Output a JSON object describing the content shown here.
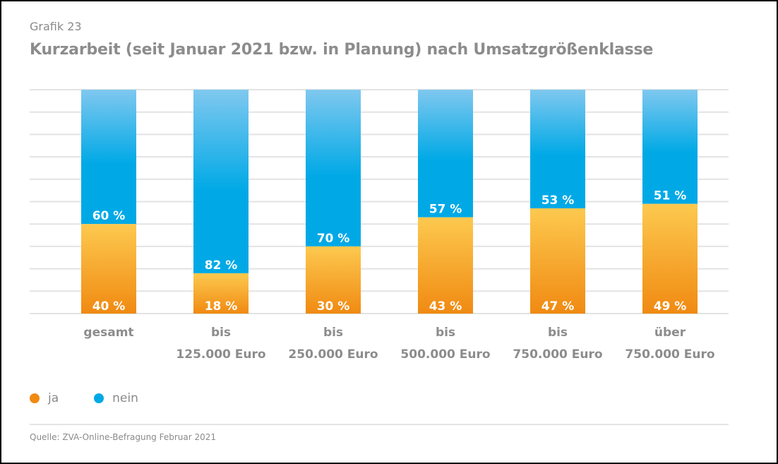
{
  "header": {
    "kicker": "Grafik 23",
    "title": "Kurzarbeit (seit Januar 2021 bzw. in Planung) nach Umsatzgrößenklasse"
  },
  "legend": [
    {
      "label": "ja",
      "color": "#f08a12"
    },
    {
      "label": "nein",
      "color": "#00a9e6"
    }
  ],
  "source": "Quelle: ZVA-Online-Befragung Februar 2021",
  "chart_data": {
    "type": "bar",
    "stacked": true,
    "orientation": "vertical",
    "title": "Kurzarbeit (seit Januar 2021 bzw. in Planung) nach Umsatzgrößenklasse",
    "categories": [
      [
        "gesamt"
      ],
      [
        "bis",
        "125.000 Euro"
      ],
      [
        "bis",
        "250.000 Euro"
      ],
      [
        "bis",
        "500.000 Euro"
      ],
      [
        "bis",
        "750.000 Euro"
      ],
      [
        "über",
        "750.000 Euro"
      ]
    ],
    "series": [
      {
        "name": "ja",
        "values": [
          40,
          18,
          30,
          43,
          47,
          49
        ],
        "color": "#f08a12",
        "color_light": "#fdc94f"
      },
      {
        "name": "nein",
        "values": [
          60,
          82,
          70,
          57,
          53,
          51
        ],
        "color": "#00a9e6",
        "color_light": "#7fc8ef"
      }
    ],
    "value_suffix": " %",
    "ylim": [
      0,
      100
    ],
    "grid_step": 10,
    "grid": true,
    "y_axis_labels": false,
    "legend_position": "bottom-left"
  }
}
